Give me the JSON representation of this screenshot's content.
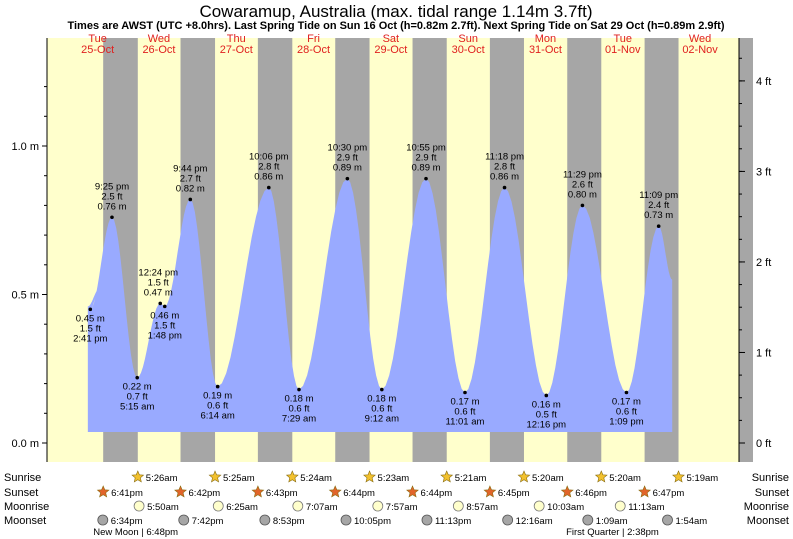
{
  "title": "Cowaramup, Australia (max. tidal range 1.14m 3.7ft)",
  "subtitle": "Times are AWST (UTC +8.0hrs). Last Spring Tide on Sun 16 Oct (h=0.82m 2.7ft). Next Spring Tide on Sat 29 Oct (h=0.89m 2.9ft)",
  "colors": {
    "day": "#ffffcc",
    "night": "#a6a6a6",
    "tide": "#99aaff",
    "day_label": "#e0211f",
    "sunrise": "#f2c12e",
    "sunset": "#e2642a",
    "moonrise": "#ffffcc",
    "moonset": "#a6a6a6"
  },
  "days": [
    {
      "dow": "Tue",
      "date": "25-Oct"
    },
    {
      "dow": "Wed",
      "date": "26-Oct"
    },
    {
      "dow": "Thu",
      "date": "27-Oct"
    },
    {
      "dow": "Fri",
      "date": "28-Oct"
    },
    {
      "dow": "Sat",
      "date": "29-Oct"
    },
    {
      "dow": "Sun",
      "date": "30-Oct"
    },
    {
      "dow": "Mon",
      "date": "31-Oct"
    },
    {
      "dow": "Tue",
      "date": "01-Nov"
    },
    {
      "dow": "Wed",
      "date": "02-Nov"
    }
  ],
  "chart_data": {
    "type": "area",
    "title": "Cowaramup, Australia (max. tidal range 1.14m 3.7ft)",
    "ylabel_left_unit": "m",
    "ylabel_right_unit": "ft",
    "yticks_m": [
      "0.0 m",
      "0.5 m",
      "1.0 m"
    ],
    "yticks_m_values": [
      0,
      0.5,
      1.0
    ],
    "yticks_ft": [
      "0 ft",
      "1 ft",
      "2 ft",
      "3 ft",
      "4 ft"
    ],
    "yticks_ft_values": [
      0,
      1,
      2,
      3,
      4
    ],
    "ylim_m": [
      -0.02,
      1.32
    ],
    "xlim_days": [
      0,
      8.6
    ],
    "grid": false,
    "tides": [
      {
        "type": "low",
        "day": 0,
        "time": "2:41 pm",
        "m": "0.45 m",
        "ft": "1.5 ft",
        "h": 0.45
      },
      {
        "type": "high",
        "day": 0,
        "time": "9:25 pm",
        "m": "0.76 m",
        "ft": "2.5 ft",
        "h": 0.76
      },
      {
        "type": "low",
        "day": 1,
        "time": "5:15 am",
        "m": "0.22 m",
        "ft": "0.7 ft",
        "h": 0.22
      },
      {
        "type": "high",
        "day": 1,
        "time": "12:24 pm",
        "m": "0.47 m",
        "ft": "1.5 ft",
        "h": 0.47
      },
      {
        "type": "low",
        "day": 1,
        "time": "1:48 pm",
        "m": "0.46 m",
        "ft": "1.5 ft",
        "h": 0.46
      },
      {
        "type": "high",
        "day": 1,
        "time": "9:44 pm",
        "m": "0.82 m",
        "ft": "2.7 ft",
        "h": 0.82
      },
      {
        "type": "low",
        "day": 2,
        "time": "6:14 am",
        "m": "0.19 m",
        "ft": "0.6 ft",
        "h": 0.19
      },
      {
        "type": "high",
        "day": 2,
        "time": "10:06 pm",
        "m": "0.86 m",
        "ft": "2.8 ft",
        "h": 0.86
      },
      {
        "type": "low",
        "day": 3,
        "time": "7:29 am",
        "m": "0.18 m",
        "ft": "0.6 ft",
        "h": 0.18
      },
      {
        "type": "high",
        "day": 3,
        "time": "10:30 pm",
        "m": "0.89 m",
        "ft": "2.9 ft",
        "h": 0.89
      },
      {
        "type": "low",
        "day": 4,
        "time": "9:12 am",
        "m": "0.18 m",
        "ft": "0.6 ft",
        "h": 0.18
      },
      {
        "type": "high",
        "day": 4,
        "time": "10:55 pm",
        "m": "0.89 m",
        "ft": "2.9 ft",
        "h": 0.89
      },
      {
        "type": "low",
        "day": 5,
        "time": "11:01 am",
        "m": "0.17 m",
        "ft": "0.6 ft",
        "h": 0.17
      },
      {
        "type": "high",
        "day": 5,
        "time": "11:18 pm",
        "m": "0.86 m",
        "ft": "2.8 ft",
        "h": 0.86
      },
      {
        "type": "low",
        "day": 6,
        "time": "12:16 pm",
        "m": "0.16 m",
        "ft": "0.5 ft",
        "h": 0.16
      },
      {
        "type": "high",
        "day": 6,
        "time": "11:29 pm",
        "m": "0.80 m",
        "ft": "2.6 ft",
        "h": 0.8
      },
      {
        "type": "low",
        "day": 7,
        "time": "1:09 pm",
        "m": "0.17 m",
        "ft": "0.6 ft",
        "h": 0.17
      },
      {
        "type": "high",
        "day": 7,
        "time": "11:09 pm",
        "m": "0.73 m",
        "ft": "2.4 ft",
        "h": 0.73
      }
    ]
  },
  "rows": {
    "labels": [
      "Sunrise",
      "Sunset",
      "Moonrise",
      "Moonset"
    ],
    "sunrise": [
      {
        "day": 1,
        "time": "5:26am"
      },
      {
        "day": 2,
        "time": "5:25am"
      },
      {
        "day": 3,
        "time": "5:24am"
      },
      {
        "day": 4,
        "time": "5:23am"
      },
      {
        "day": 5,
        "time": "5:21am"
      },
      {
        "day": 6,
        "time": "5:20am"
      },
      {
        "day": 7,
        "time": "5:20am"
      },
      {
        "day": 8,
        "time": "5:19am"
      }
    ],
    "sunset": [
      {
        "day": 0,
        "time": "6:41pm"
      },
      {
        "day": 1,
        "time": "6:42pm"
      },
      {
        "day": 2,
        "time": "6:43pm"
      },
      {
        "day": 3,
        "time": "6:44pm"
      },
      {
        "day": 4,
        "time": "6:44pm"
      },
      {
        "day": 5,
        "time": "6:45pm"
      },
      {
        "day": 6,
        "time": "6:46pm"
      },
      {
        "day": 7,
        "time": "6:47pm"
      }
    ],
    "moonrise": [
      {
        "day": 1,
        "time": "5:50am"
      },
      {
        "day": 2,
        "time": "6:25am"
      },
      {
        "day": 3,
        "time": "7:07am"
      },
      {
        "day": 4,
        "time": "7:57am"
      },
      {
        "day": 5,
        "time": "8:57am"
      },
      {
        "day": 6,
        "time": "10:03am"
      },
      {
        "day": 7,
        "time": "11:13am"
      }
    ],
    "moonset": [
      {
        "day": 0,
        "time": "6:34pm"
      },
      {
        "day": 1,
        "time": "7:42pm"
      },
      {
        "day": 2,
        "time": "8:53pm"
      },
      {
        "day": 3,
        "time": "10:05pm"
      },
      {
        "day": 4,
        "time": "11:13pm"
      },
      {
        "day": 6,
        "time": "12:16am"
      },
      {
        "day": 7,
        "time": "1:09am"
      },
      {
        "day": 8,
        "time": "1:54am"
      }
    ],
    "moon_phases": [
      {
        "label": "New Moon | 6:48pm"
      },
      {
        "label": "First Quarter | 2:38pm"
      }
    ]
  }
}
